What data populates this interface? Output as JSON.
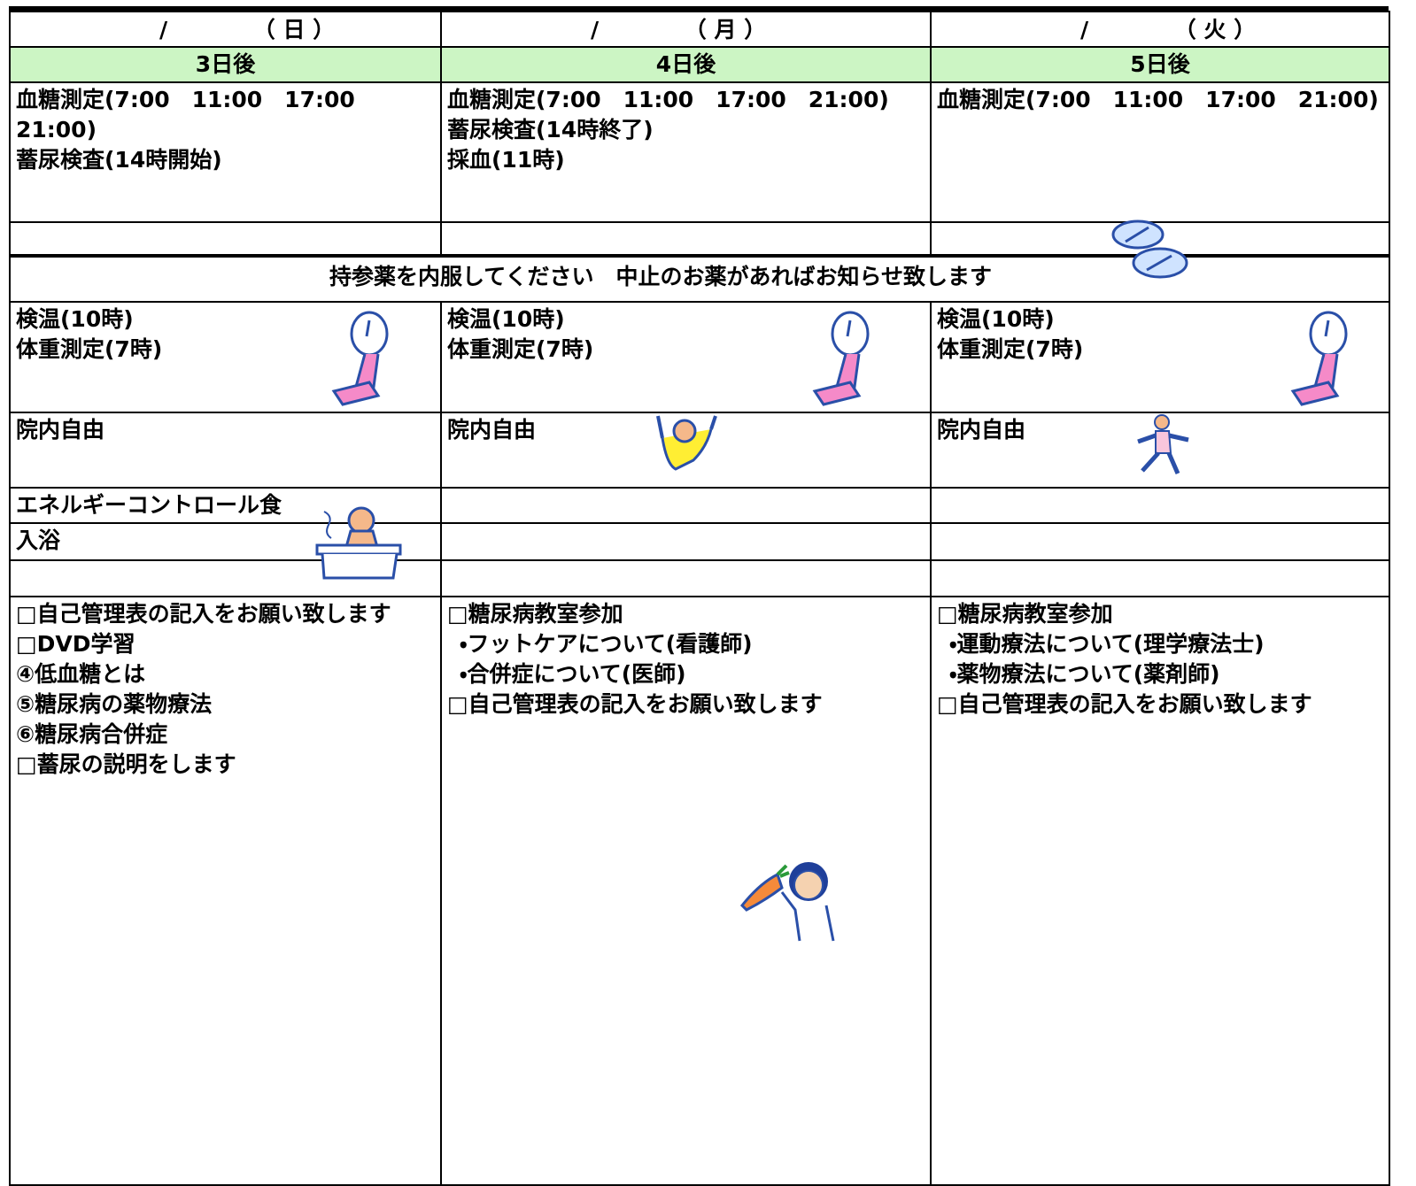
{
  "columns": [
    {
      "date": "/",
      "weekday": "（ 日 ）",
      "day": "3日後",
      "tests": [
        "血糖測定(7:00　11:00　17:00　21:00)",
        "蓄尿検査(14時開始)"
      ],
      "vitals": [
        "検温(10時)",
        "体重測定(7時)"
      ],
      "activity": "院内自由",
      "meal": "エネルギーコントロール食",
      "bath": "入浴",
      "notes": [
        "□自己管理表の記入をお願い致します",
        "□DVD学習",
        "④低血糖とは",
        "⑤糖尿病の薬物療法",
        "⑥糖尿病合併症",
        "□蓄尿の説明をします"
      ]
    },
    {
      "date": "/",
      "weekday": "（ 月 ）",
      "day": "4日後",
      "tests": [
        "血糖測定(7:00　11:00　17:00　21:00)",
        "蓄尿検査(14時終了)",
        "採血(11時)"
      ],
      "vitals": [
        "検温(10時)",
        "体重測定(7時)"
      ],
      "activity": "院内自由",
      "notes": [
        "□糖尿病教室参加",
        "・フットケアについて(看護師)",
        "・合併症について(医師)",
        "□自己管理表の記入をお願い致します"
      ]
    },
    {
      "date": "/",
      "weekday": "（ 火 ）",
      "day": "5日後",
      "tests": [
        "血糖測定(7:00　11:00　17:00　21:00)"
      ],
      "vitals": [
        "検温(10時)",
        "体重測定(7時)"
      ],
      "activity": "院内自由",
      "notes": [
        "□糖尿病教室参加",
        "・運動療法について(理学療法士)",
        "・薬物療法について(薬剤師)",
        "□自己管理表の記入をお願い致します"
      ]
    }
  ],
  "medication_notice": "持参薬を内服してください　中止のお薬があればお知らせ致します"
}
